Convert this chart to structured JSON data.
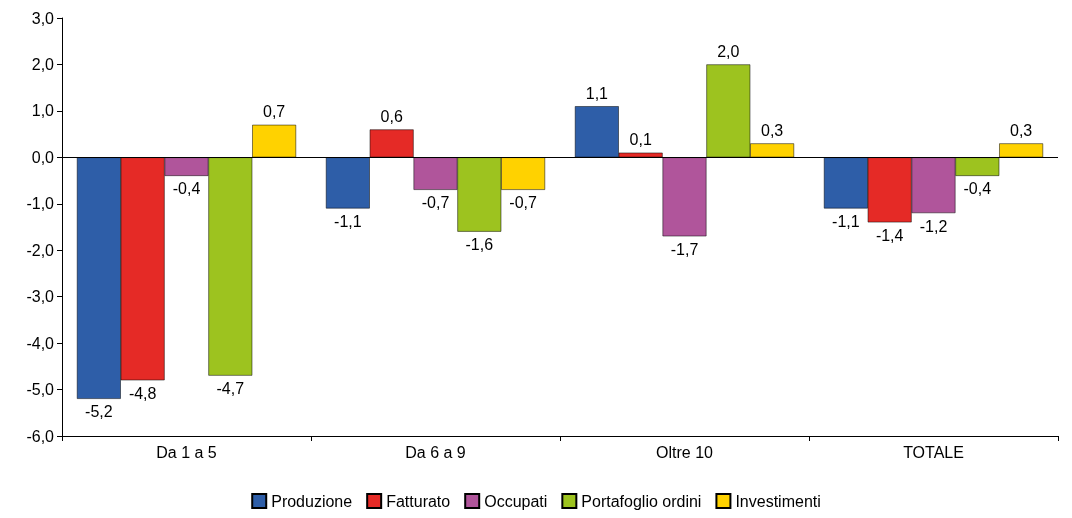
{
  "chart_data": {
    "type": "bar",
    "categories": [
      "Da 1 a 5",
      "Da 6 a 9",
      "Oltre 10",
      "TOTALE"
    ],
    "series": [
      {
        "name": "Produzione",
        "color": "#2e5ea8",
        "values": [
          -5.2,
          -1.1,
          1.1,
          -1.1
        ],
        "value_labels": [
          "-5,2",
          "-1,1",
          "1,1",
          "-1,1"
        ]
      },
      {
        "name": "Fatturato",
        "color": "#e52a26",
        "values": [
          -4.8,
          0.6,
          0.1,
          -1.4
        ],
        "value_labels": [
          "-4,8",
          "0,6",
          "0,1",
          "-1,4"
        ]
      },
      {
        "name": "Occupati",
        "color": "#b0559b",
        "values": [
          -0.4,
          -0.7,
          -1.7,
          -1.2
        ],
        "value_labels": [
          "-0,4",
          "-0,7",
          "-1,7",
          "-1,2"
        ]
      },
      {
        "name": "Portafoglio ordini",
        "color": "#9dc31f",
        "values": [
          -4.7,
          -1.6,
          2.0,
          -0.4
        ],
        "value_labels": [
          "-4,7",
          "-1,6",
          "2,0",
          "-0,4"
        ]
      },
      {
        "name": "Investimenti",
        "color": "#ffd200",
        "values": [
          0.7,
          -0.7,
          0.3,
          0.3
        ],
        "value_labels": [
          "0,7",
          "-0,7",
          "0,3",
          "0,3"
        ]
      }
    ],
    "ylim": [
      -6,
      3
    ],
    "yticks": [
      {
        "value": -6,
        "label": "-6,0"
      },
      {
        "value": -5,
        "label": "-5,0"
      },
      {
        "value": -4,
        "label": "-4,0"
      },
      {
        "value": -3,
        "label": "-3,0"
      },
      {
        "value": -2,
        "label": "-2,0"
      },
      {
        "value": -1,
        "label": "-1,0"
      },
      {
        "value": 0,
        "label": "0,0"
      },
      {
        "value": 1,
        "label": "1,0"
      },
      {
        "value": 2,
        "label": "2,0"
      },
      {
        "value": 3,
        "label": "3,0"
      }
    ],
    "ref_lines": [
      {
        "axis": "y",
        "value": 0,
        "color": "#000000"
      }
    ],
    "grid": false,
    "legend": "bottom"
  }
}
